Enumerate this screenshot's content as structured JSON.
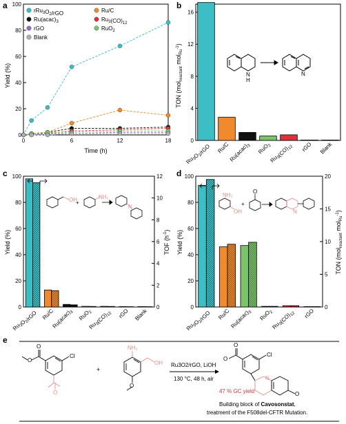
{
  "colors": {
    "teal": "#3bbfc4",
    "orange": "#f08a2c",
    "black": "#111111",
    "red": "#e0303a",
    "purple": "#8f6fc5",
    "green": "#7cc36a",
    "grey": "#b0b0b0",
    "pink": "#e88a8a"
  },
  "chart_data": [
    {
      "panel": "a",
      "type": "line",
      "xlabel": "Time (h)",
      "ylabel": "Yield (%)",
      "xlim": [
        0,
        18
      ],
      "ylim": [
        0,
        100
      ],
      "xticks": [
        "0",
        "6",
        "12",
        "18"
      ],
      "yticks": [
        "0",
        "20",
        "40",
        "60",
        "80",
        "100"
      ],
      "legend_columns": [
        [
          "rRu3O2/rGO",
          "Ru(acac)3",
          "rGO",
          "Blank"
        ],
        [
          "Ru/C",
          "Ru3(CO)12",
          "RuO2"
        ]
      ],
      "x": [
        0,
        1,
        3,
        6,
        12,
        18
      ],
      "series": [
        {
          "name": "rRu3O2/rGO",
          "color_key": "teal",
          "values": [
            0,
            11,
            21,
            52,
            68,
            86
          ]
        },
        {
          "name": "Ru/C",
          "color_key": "orange",
          "values": [
            0,
            1,
            2,
            9,
            19,
            15
          ]
        },
        {
          "name": "Ru(acac)3",
          "color_key": "black",
          "values": [
            0,
            1,
            2,
            5,
            5,
            6
          ]
        },
        {
          "name": "Ru3(CO)12",
          "color_key": "red",
          "values": [
            0,
            1,
            1,
            3,
            4,
            5
          ]
        },
        {
          "name": "rGO",
          "color_key": "purple",
          "values": [
            0,
            0,
            1,
            1,
            2,
            2
          ]
        },
        {
          "name": "RuO2",
          "color_key": "green",
          "values": [
            0,
            1,
            2,
            2,
            3,
            3
          ]
        },
        {
          "name": "Blank",
          "color_key": "grey",
          "values": [
            0,
            0,
            0,
            1,
            1,
            1
          ]
        }
      ]
    },
    {
      "panel": "b",
      "type": "bar",
      "ylabel": "TON (molreactant molRu-1)",
      "ylim": [
        0,
        17
      ],
      "yticks": [
        "0",
        "4",
        "8",
        "12",
        "16"
      ],
      "categories": [
        "Ru3O2/rGO",
        "Ru/C",
        "Ru(acac)3",
        "RuO2",
        "Ru3(CO)12",
        "rGO",
        "Blank"
      ],
      "values": [
        17.2,
        2.9,
        1.0,
        0.55,
        0.7,
        0.05,
        0.05
      ],
      "bar_colors": [
        "teal",
        "orange",
        "black",
        "green",
        "red",
        "purple",
        "grey"
      ]
    },
    {
      "panel": "c",
      "type": "bar",
      "ylabel_left": "Yield (%)",
      "ylabel_right": "TOF (h-1)",
      "ylim_left": [
        0,
        100
      ],
      "ylim_right": [
        0,
        12
      ],
      "yticks_left": [
        "0",
        "20",
        "40",
        "60",
        "80",
        "100"
      ],
      "yticks_right": [
        "0",
        "2",
        "4",
        "6",
        "8",
        "10",
        "12"
      ],
      "categories": [
        "Ru3O2/rGO",
        "Ru/C",
        "Ru(acac)3",
        "RuO2",
        "Ru3(CO)12",
        "rGO",
        "Blank"
      ],
      "series": [
        {
          "name": "Yield",
          "values": [
            98,
            13,
            2,
            0.5,
            0.5,
            0.3,
            0.3
          ]
        },
        {
          "name": "TOF",
          "values": [
            11.4,
            1.5,
            0.2,
            0.05,
            0.05,
            0.03,
            0.03
          ]
        }
      ],
      "bar_colors": [
        "teal",
        "orange",
        "black",
        "green",
        "red",
        "purple",
        "grey"
      ]
    },
    {
      "panel": "d",
      "type": "bar",
      "ylabel_left": "Yield (%)",
      "ylabel_right": "TON (molreactant molRu-1)",
      "ylim_left": [
        0,
        100
      ],
      "ylim_right": [
        0,
        20
      ],
      "yticks_left": [
        "0",
        "20",
        "40",
        "60",
        "80",
        "100"
      ],
      "yticks_right": [
        "0",
        "5",
        "10",
        "15",
        "20"
      ],
      "categories": [
        "Ru3O2/rGO",
        "Ru/C",
        "Ru(acac)3",
        "RuO2",
        "Ru3(CO)12",
        "rGO"
      ],
      "series": [
        {
          "name": "Yield",
          "values": [
            93,
            46,
            47,
            0.5,
            1,
            0.3
          ]
        },
        {
          "name": "TON",
          "values": [
            19.5,
            9.6,
            9.9,
            0.1,
            0.2,
            0.06
          ]
        }
      ],
      "bar_colors": [
        "teal",
        "orange",
        "green",
        "black",
        "red",
        "purple"
      ]
    }
  ],
  "scheme_e": {
    "panel_label": "e",
    "reagents": "Ru3O2/rGO, LiOH",
    "conditions": "130 °C, 48 h, air",
    "yield_text": "47 % GC yield",
    "caption_line1_prefix": "Building block of ",
    "caption_line1_bold": "Cavosonstat",
    "caption_line1_suffix": ",",
    "caption_line2": "treatment of the F508del-CFTR Mutation."
  }
}
